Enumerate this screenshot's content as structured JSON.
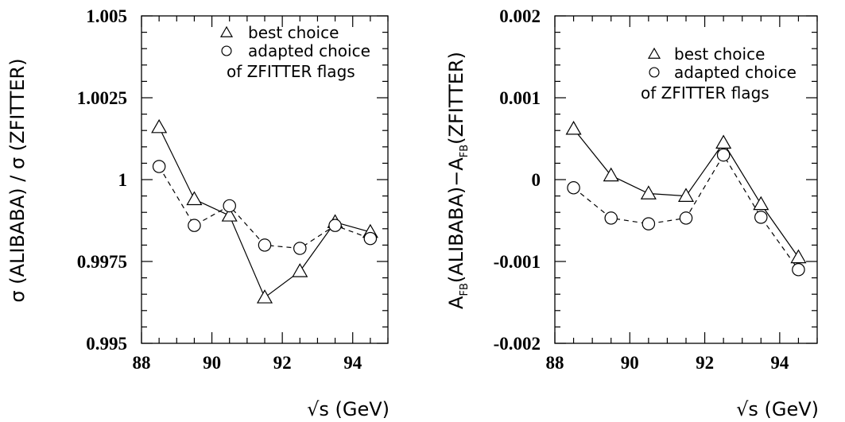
{
  "chart_data": [
    {
      "type": "line",
      "xlabel": "√s (GeV)",
      "ylabel": "σ (ALIBABA) / σ (ZFITTER)",
      "xlim": [
        88,
        95
      ],
      "ylim": [
        0.995,
        1.005
      ],
      "xticks": [
        88,
        90,
        92,
        94
      ],
      "xtick_labels": [
        "88",
        "90",
        "92",
        "94"
      ],
      "yticks": [
        0.995,
        0.9975,
        1,
        1.0025,
        1.005
      ],
      "ytick_labels": [
        "0.995",
        "0.9975",
        "1",
        "1.0025",
        "1.005"
      ],
      "grid": false,
      "legend_lines": [
        "best choice",
        "adapted choice",
        "of ZFITTER flags"
      ],
      "legend_placement": "top-right",
      "series": [
        {
          "name": "best choice",
          "marker": "triangle",
          "line_style": "solid",
          "x": [
            88.5,
            89.5,
            90.5,
            91.5,
            92.5,
            93.5,
            94.5
          ],
          "y": [
            1.0016,
            0.9994,
            0.9989,
            0.9964,
            0.9972,
            0.9987,
            0.9984
          ]
        },
        {
          "name": "adapted choice",
          "marker": "circle",
          "line_style": "dashed",
          "x": [
            88.5,
            89.5,
            90.5,
            91.5,
            92.5,
            93.5,
            94.5
          ],
          "y": [
            1.0004,
            0.9986,
            0.9992,
            0.998,
            0.9979,
            0.9986,
            0.9982
          ]
        }
      ]
    },
    {
      "type": "line",
      "xlabel": "√s (GeV)",
      "ylabel_parts": [
        "A",
        "FB",
        "(ALIBABA)−A",
        "FB",
        "(ZFITTER)"
      ],
      "xlim": [
        88,
        95
      ],
      "ylim": [
        -0.002,
        0.002
      ],
      "xticks": [
        88,
        90,
        92,
        94
      ],
      "xtick_labels": [
        "88",
        "90",
        "92",
        "94"
      ],
      "yticks": [
        -0.002,
        -0.001,
        0,
        0.001,
        0.002
      ],
      "ytick_labels": [
        "-0.002",
        "-0.001",
        "0",
        "0.001",
        "0.002"
      ],
      "grid": false,
      "legend_lines": [
        "best choice",
        "adapted choice",
        "of ZFITTER flags"
      ],
      "legend_placement": "top-right",
      "series": [
        {
          "name": "best choice",
          "marker": "triangle",
          "line_style": "solid",
          "x": [
            88.5,
            89.5,
            90.5,
            91.5,
            92.5,
            93.5,
            94.5
          ],
          "y": [
            0.00062,
            5e-05,
            -0.00017,
            -0.0002,
            0.00045,
            -0.0003,
            -0.00095
          ]
        },
        {
          "name": "adapted choice",
          "marker": "circle",
          "line_style": "dashed",
          "x": [
            88.5,
            89.5,
            90.5,
            91.5,
            92.5,
            93.5,
            94.5
          ],
          "y": [
            -0.0001,
            -0.00047,
            -0.00054,
            -0.00047,
            0.0003,
            -0.00046,
            -0.0011
          ]
        }
      ]
    }
  ]
}
